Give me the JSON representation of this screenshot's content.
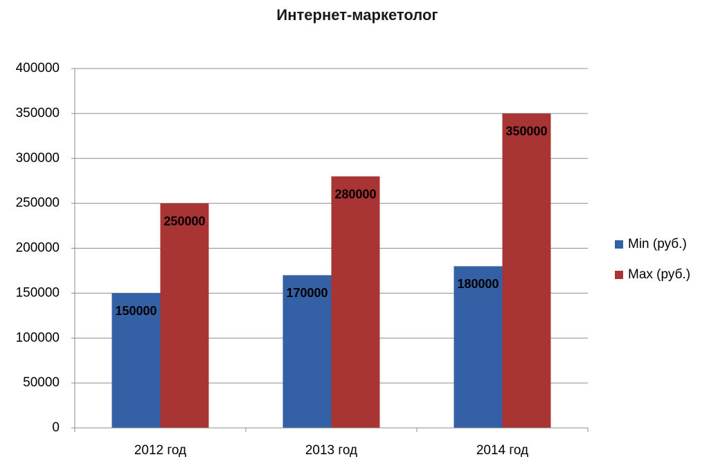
{
  "chart_data": {
    "type": "bar",
    "title": "Интернет-маркетолог",
    "categories": [
      "2012 год",
      "2013 год",
      "2014 год"
    ],
    "series": [
      {
        "name": "Min (руб.)",
        "color": "#3461a6",
        "values": [
          150000,
          170000,
          180000
        ]
      },
      {
        "name": "Max (руб.)",
        "color": "#a93434",
        "values": [
          250000,
          280000,
          350000
        ]
      }
    ],
    "ylim": [
      0,
      400000
    ],
    "yticks": [
      0,
      50000,
      100000,
      150000,
      200000,
      250000,
      300000,
      350000,
      400000
    ],
    "grid": true,
    "legend": "right",
    "data_labels": true
  }
}
